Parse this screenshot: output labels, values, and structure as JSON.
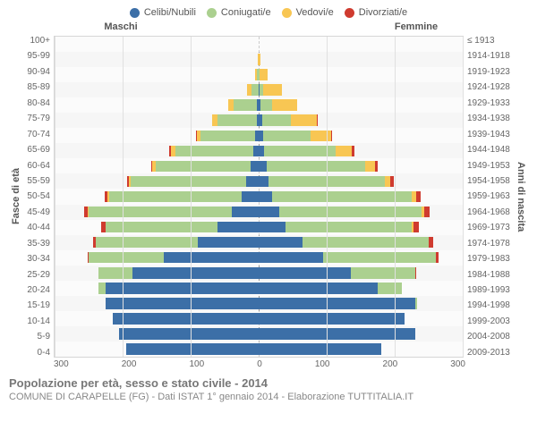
{
  "legend": [
    {
      "label": "Celibi/Nubili",
      "color": "#3c6fa7"
    },
    {
      "label": "Coniugati/e",
      "color": "#abd08f"
    },
    {
      "label": "Vedovi/e",
      "color": "#f8c653"
    },
    {
      "label": "Divorziati/e",
      "color": "#cf3b2f"
    }
  ],
  "headers": {
    "left": "Maschi",
    "right": "Femmine"
  },
  "ylabels": {
    "left": "Fasce di età",
    "right": "Anni di nascita"
  },
  "title": "Popolazione per età, sesso e stato civile - 2014",
  "subtitle": "COMUNE DI CARAPELLE (FG) - Dati ISTAT 1° gennaio 2014 - Elaborazione TUTTITALIA.IT",
  "xaxis": {
    "max": 300,
    "ticks": [
      300,
      200,
      100,
      0,
      100,
      200,
      300
    ]
  },
  "colors": {
    "celibi": "#3c6fa7",
    "coniugati": "#abd08f",
    "vedovi": "#f8c653",
    "divorziati": "#cf3b2f",
    "plot_bg": "#f6f6f6",
    "grid": "#e0e0e0"
  },
  "rows": [
    {
      "age": "100+",
      "year": "≤ 1913",
      "m": {
        "c": 0,
        "k": 0,
        "v": 0,
        "d": 0
      },
      "f": {
        "c": 0,
        "k": 0,
        "v": 0,
        "d": 0
      }
    },
    {
      "age": "95-99",
      "year": "1914-1918",
      "m": {
        "c": 0,
        "k": 0,
        "v": 1,
        "d": 0
      },
      "f": {
        "c": 0,
        "k": 0,
        "v": 3,
        "d": 0
      }
    },
    {
      "age": "90-94",
      "year": "1919-1923",
      "m": {
        "c": 0,
        "k": 2,
        "v": 3,
        "d": 0
      },
      "f": {
        "c": 0,
        "k": 1,
        "v": 12,
        "d": 0
      }
    },
    {
      "age": "85-89",
      "year": "1924-1928",
      "m": {
        "c": 0,
        "k": 11,
        "v": 6,
        "d": 0
      },
      "f": {
        "c": 1,
        "k": 5,
        "v": 28,
        "d": 0
      }
    },
    {
      "age": "80-84",
      "year": "1929-1933",
      "m": {
        "c": 2,
        "k": 35,
        "v": 8,
        "d": 0
      },
      "f": {
        "c": 2,
        "k": 18,
        "v": 36,
        "d": 0
      }
    },
    {
      "age": "75-79",
      "year": "1934-1938",
      "m": {
        "c": 3,
        "k": 58,
        "v": 8,
        "d": 0
      },
      "f": {
        "c": 5,
        "k": 43,
        "v": 37,
        "d": 1
      }
    },
    {
      "age": "70-74",
      "year": "1939-1943",
      "m": {
        "c": 5,
        "k": 80,
        "v": 6,
        "d": 1
      },
      "f": {
        "c": 6,
        "k": 70,
        "v": 30,
        "d": 2
      }
    },
    {
      "age": "65-69",
      "year": "1944-1948",
      "m": {
        "c": 8,
        "k": 115,
        "v": 6,
        "d": 2
      },
      "f": {
        "c": 8,
        "k": 105,
        "v": 24,
        "d": 4
      }
    },
    {
      "age": "60-64",
      "year": "1949-1953",
      "m": {
        "c": 12,
        "k": 140,
        "v": 4,
        "d": 2
      },
      "f": {
        "c": 12,
        "k": 145,
        "v": 14,
        "d": 4
      }
    },
    {
      "age": "55-59",
      "year": "1954-1958",
      "m": {
        "c": 18,
        "k": 170,
        "v": 3,
        "d": 3
      },
      "f": {
        "c": 15,
        "k": 170,
        "v": 9,
        "d": 5
      }
    },
    {
      "age": "50-54",
      "year": "1959-1963",
      "m": {
        "c": 25,
        "k": 195,
        "v": 2,
        "d": 5
      },
      "f": {
        "c": 20,
        "k": 205,
        "v": 6,
        "d": 7
      }
    },
    {
      "age": "45-49",
      "year": "1964-1968",
      "m": {
        "c": 40,
        "k": 210,
        "v": 1,
        "d": 6
      },
      "f": {
        "c": 30,
        "k": 210,
        "v": 3,
        "d": 8
      }
    },
    {
      "age": "40-44",
      "year": "1969-1973",
      "m": {
        "c": 60,
        "k": 165,
        "v": 0,
        "d": 7
      },
      "f": {
        "c": 40,
        "k": 185,
        "v": 2,
        "d": 8
      }
    },
    {
      "age": "35-39",
      "year": "1974-1978",
      "m": {
        "c": 90,
        "k": 150,
        "v": 0,
        "d": 4
      },
      "f": {
        "c": 65,
        "k": 185,
        "v": 0,
        "d": 6
      }
    },
    {
      "age": "30-34",
      "year": "1979-1983",
      "m": {
        "c": 140,
        "k": 110,
        "v": 0,
        "d": 2
      },
      "f": {
        "c": 95,
        "k": 165,
        "v": 0,
        "d": 4
      }
    },
    {
      "age": "25-29",
      "year": "1984-1988",
      "m": {
        "c": 185,
        "k": 50,
        "v": 0,
        "d": 0
      },
      "f": {
        "c": 135,
        "k": 95,
        "v": 0,
        "d": 1
      }
    },
    {
      "age": "20-24",
      "year": "1989-1993",
      "m": {
        "c": 225,
        "k": 10,
        "v": 0,
        "d": 0
      },
      "f": {
        "c": 175,
        "k": 35,
        "v": 0,
        "d": 0
      }
    },
    {
      "age": "15-19",
      "year": "1994-1998",
      "m": {
        "c": 225,
        "k": 0,
        "v": 0,
        "d": 0
      },
      "f": {
        "c": 230,
        "k": 3,
        "v": 0,
        "d": 0
      }
    },
    {
      "age": "10-14",
      "year": "1999-2003",
      "m": {
        "c": 215,
        "k": 0,
        "v": 0,
        "d": 0
      },
      "f": {
        "c": 215,
        "k": 0,
        "v": 0,
        "d": 0
      }
    },
    {
      "age": "5-9",
      "year": "2004-2008",
      "m": {
        "c": 205,
        "k": 0,
        "v": 0,
        "d": 0
      },
      "f": {
        "c": 230,
        "k": 0,
        "v": 0,
        "d": 0
      }
    },
    {
      "age": "0-4",
      "year": "2009-2013",
      "m": {
        "c": 195,
        "k": 0,
        "v": 0,
        "d": 0
      },
      "f": {
        "c": 180,
        "k": 0,
        "v": 0,
        "d": 0
      }
    }
  ]
}
